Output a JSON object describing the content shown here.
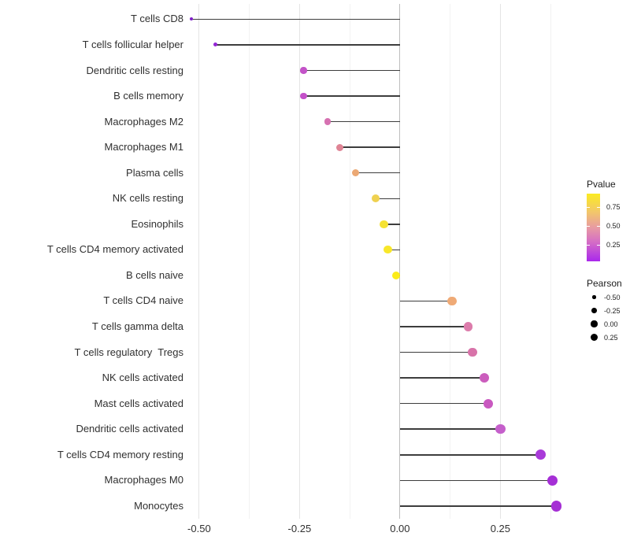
{
  "chart_data": {
    "type": "scatter",
    "style": "lollipop",
    "title": "",
    "xlabel": "",
    "ylabel": "",
    "categories": [
      "T cells CD8",
      "T cells follicular helper",
      "Dendritic cells resting",
      "B cells memory",
      "Macrophages M2",
      "Macrophages M1",
      "Plasma cells",
      "NK cells resting",
      "Eosinophils",
      "T cells CD4 memory activated",
      "B cells naive",
      "T cells CD4 naive",
      "T cells gamma delta",
      "T cells regulatory  Tregs",
      "NK cells activated",
      "Mast cells activated",
      "Dendritic cells activated",
      "T cells CD4 memory resting",
      "Macrophages M0",
      "Monocytes"
    ],
    "series": [
      {
        "name": "Pearson",
        "values": [
          -0.52,
          -0.46,
          -0.24,
          -0.24,
          -0.18,
          -0.15,
          -0.11,
          -0.06,
          -0.04,
          -0.03,
          -0.01,
          0.13,
          0.17,
          0.18,
          0.21,
          0.22,
          0.25,
          0.35,
          0.38,
          0.39
        ]
      }
    ],
    "point_colors": [
      "#7F20C8",
      "#9326D4",
      "#C353C8",
      "#C450C9",
      "#D671B1",
      "#DF8495",
      "#EBA874",
      "#EFD150",
      "#F5E233",
      "#F8E72A",
      "#FBEB19",
      "#EFAA76",
      "#DC7CAB",
      "#D873A9",
      "#CB5DBD",
      "#C958C0",
      "#C55FCB",
      "#A93BD9",
      "#A52FD6",
      "#A52FD4"
    ],
    "x_ticks": {
      "labels": [
        "-0.50",
        "-0.25",
        "0.00",
        "0.25"
      ],
      "values": [
        -0.5,
        -0.25,
        0.0,
        0.25
      ]
    },
    "x_minor_ticks": [
      -0.375,
      -0.125,
      0.125,
      0.375
    ],
    "xlim": [
      -0.5625,
      0.4375
    ],
    "baseline": 0,
    "grid": "vertical-only",
    "legend_position": "right",
    "legend": {
      "pvalue": {
        "title": "Pvalue",
        "tick_labels": [
          "0.75",
          "0.50",
          "0.25"
        ],
        "gradient_stops": [
          "#FBEB22",
          "#F2C76A",
          "#E89BA2",
          "#D46CC6",
          "#A928EC"
        ]
      },
      "pearson": {
        "title": "Pearson",
        "labels": [
          "-0.50",
          "-0.25",
          "0.00",
          "0.25"
        ],
        "dot_color": "#000000"
      }
    }
  },
  "colors": {
    "background": "#FFFFFF",
    "stem": "#3d3d3d",
    "grid_major": "#e4e4e4",
    "grid_minor": "#f2f2f2",
    "zero_line": "#bdbdbd",
    "axis_text": "#303030"
  }
}
